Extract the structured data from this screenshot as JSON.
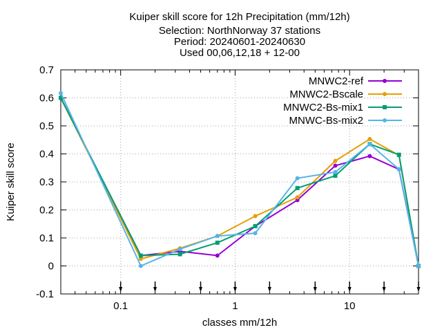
{
  "chart_data": {
    "type": "line",
    "title_lines": [
      "Kuiper skill score  for 12h Precipitation (mm/12h)",
      "Selection: NorthNorway      37 stations",
      "Period: 20240601-20240630",
      "Used 00,06,12,18 + 12-00"
    ],
    "xlabel": "classes mm/12h",
    "ylabel": "Kuiper skill score",
    "x_scale": "log",
    "xlim": [
      0.03,
      40
    ],
    "ylim": [
      -0.1,
      0.7
    ],
    "x_ticks": [
      {
        "value": 0.1,
        "label": "0.1"
      },
      {
        "value": 1,
        "label": "1"
      },
      {
        "value": 10,
        "label": "10"
      }
    ],
    "y_ticks": [
      {
        "value": -0.1,
        "label": "-0.1"
      },
      {
        "value": 0,
        "label": "0"
      },
      {
        "value": 0.1,
        "label": "0.1"
      },
      {
        "value": 0.2,
        "label": "0.2"
      },
      {
        "value": 0.3,
        "label": "0.3"
      },
      {
        "value": 0.4,
        "label": "0.4"
      },
      {
        "value": 0.5,
        "label": "0.5"
      },
      {
        "value": 0.6,
        "label": "0.6"
      },
      {
        "value": 0.7,
        "label": "0.7"
      }
    ],
    "class_markers": [
      0.1,
      0.2,
      0.5,
      1,
      2,
      5,
      10,
      20,
      40
    ],
    "grid": true,
    "legend_position": "top-right",
    "series": [
      {
        "name": "MNWC2-ref",
        "color": "#9400d3",
        "marker": "filled-circle",
        "x": [
          0.03,
          0.15,
          0.33,
          0.7,
          1.5,
          3.5,
          7.5,
          15,
          27,
          40
        ],
        "y": [
          0.6,
          0.037,
          0.052,
          0.037,
          0.142,
          0.235,
          0.358,
          0.392,
          0.345,
          0.0
        ]
      },
      {
        "name": "MNWC2-Bscale",
        "color": "#e69f00",
        "marker": "filled-circle",
        "x": [
          0.03,
          0.15,
          0.33,
          0.7,
          1.5,
          3.5,
          7.5,
          15,
          27,
          40
        ],
        "y": [
          0.6,
          0.025,
          0.063,
          0.107,
          0.178,
          0.245,
          0.375,
          0.453,
          0.395,
          0.0
        ]
      },
      {
        "name": "MNWC2-Bs-mix1",
        "color": "#009e73",
        "marker": "filled-square",
        "x": [
          0.03,
          0.15,
          0.33,
          0.7,
          1.5,
          3.5,
          7.5,
          15,
          27,
          40
        ],
        "y": [
          0.6,
          0.037,
          0.042,
          0.083,
          0.142,
          0.278,
          0.322,
          0.435,
          0.397,
          0.0
        ]
      },
      {
        "name": "MNWC-Bs-mix2",
        "color": "#56b4e9",
        "marker": "filled-circle",
        "x": [
          0.03,
          0.15,
          0.33,
          0.7,
          1.5,
          3.5,
          7.5,
          15,
          27,
          40
        ],
        "y": [
          0.617,
          0.0,
          0.06,
          0.107,
          0.117,
          0.313,
          0.335,
          0.435,
          0.345,
          0.0
        ]
      }
    ]
  }
}
